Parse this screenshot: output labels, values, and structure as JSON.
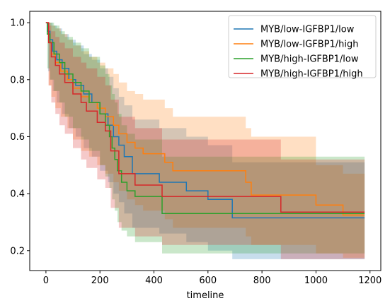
{
  "chart_data": {
    "type": "line",
    "step": "post",
    "title": "",
    "xlabel": "timeline",
    "ylabel": "",
    "xlim": [
      -60,
      1240
    ],
    "ylim": [
      0.13,
      1.04
    ],
    "xticks": [
      0,
      200,
      400,
      600,
      800,
      1000,
      1200
    ],
    "xtick_labels": [
      "0",
      "200",
      "400",
      "600",
      "800",
      "1000",
      "1200"
    ],
    "yticks": [
      0.2,
      0.4,
      0.6,
      0.8,
      1.0
    ],
    "ytick_labels": [
      "0.2",
      "0.4",
      "0.6",
      "0.8",
      "1.0"
    ],
    "grid": false,
    "legend_position": "top-right",
    "series": [
      {
        "name": "MYB/low-IGFBP1/low",
        "color": "#1f77b4",
        "x": [
          0,
          8,
          15,
          25,
          40,
          60,
          85,
          110,
          140,
          170,
          200,
          230,
          250,
          270,
          290,
          320,
          420,
          520,
          600,
          690,
          1180
        ],
        "y": [
          1.0,
          0.97,
          0.94,
          0.9,
          0.87,
          0.84,
          0.8,
          0.78,
          0.75,
          0.72,
          0.68,
          0.64,
          0.6,
          0.57,
          0.53,
          0.47,
          0.44,
          0.41,
          0.38,
          0.315,
          0.315
        ],
        "lower": [
          1.0,
          0.83,
          0.8,
          0.76,
          0.72,
          0.68,
          0.63,
          0.6,
          0.56,
          0.53,
          0.48,
          0.44,
          0.4,
          0.37,
          0.33,
          0.28,
          0.26,
          0.23,
          0.2,
          0.17,
          0.17
        ],
        "upper": [
          1.0,
          1.0,
          1.0,
          0.99,
          0.98,
          0.96,
          0.94,
          0.92,
          0.89,
          0.87,
          0.84,
          0.81,
          0.77,
          0.74,
          0.71,
          0.66,
          0.63,
          0.6,
          0.57,
          0.51,
          0.51
        ]
      },
      {
        "name": "MYB/low-IGFBP1/high",
        "color": "#ff7f0e",
        "x": [
          0,
          10,
          20,
          35,
          55,
          80,
          100,
          130,
          160,
          190,
          220,
          250,
          270,
          300,
          330,
          360,
          440,
          470,
          740,
          760,
          1000,
          1100,
          1180
        ],
        "y": [
          1.0,
          0.93,
          0.89,
          0.86,
          0.83,
          0.8,
          0.77,
          0.74,
          0.72,
          0.7,
          0.67,
          0.64,
          0.61,
          0.58,
          0.56,
          0.54,
          0.51,
          0.48,
          0.44,
          0.395,
          0.36,
          0.325,
          0.325
        ],
        "lower": [
          1.0,
          0.78,
          0.74,
          0.7,
          0.67,
          0.63,
          0.59,
          0.55,
          0.53,
          0.5,
          0.47,
          0.44,
          0.41,
          0.38,
          0.36,
          0.34,
          0.31,
          0.28,
          0.25,
          0.22,
          0.19,
          0.175,
          0.175
        ],
        "upper": [
          1.0,
          1.0,
          0.99,
          0.98,
          0.96,
          0.94,
          0.92,
          0.9,
          0.88,
          0.86,
          0.84,
          0.82,
          0.79,
          0.76,
          0.75,
          0.73,
          0.7,
          0.67,
          0.63,
          0.6,
          0.5,
          0.47,
          0.47
        ]
      },
      {
        "name": "MYB/high-IGFBP1/low",
        "color": "#2ca02c",
        "x": [
          0,
          5,
          15,
          30,
          50,
          70,
          100,
          130,
          160,
          200,
          220,
          235,
          245,
          255,
          265,
          280,
          300,
          330,
          430,
          1180
        ],
        "y": [
          1.0,
          0.96,
          0.93,
          0.89,
          0.86,
          0.82,
          0.79,
          0.76,
          0.72,
          0.68,
          0.64,
          0.6,
          0.56,
          0.52,
          0.48,
          0.44,
          0.41,
          0.39,
          0.33,
          0.33
        ],
        "lower": [
          1.0,
          0.84,
          0.8,
          0.76,
          0.72,
          0.67,
          0.63,
          0.59,
          0.55,
          0.5,
          0.46,
          0.42,
          0.38,
          0.34,
          0.3,
          0.27,
          0.25,
          0.23,
          0.19,
          0.19
        ],
        "upper": [
          1.0,
          1.0,
          1.0,
          0.99,
          0.97,
          0.95,
          0.93,
          0.91,
          0.88,
          0.85,
          0.82,
          0.78,
          0.75,
          0.72,
          0.68,
          0.64,
          0.61,
          0.59,
          0.53,
          0.53
        ]
      },
      {
        "name": "MYB/high-IGFBP1/high",
        "color": "#d62728",
        "x": [
          0,
          10,
          20,
          35,
          50,
          70,
          100,
          130,
          150,
          190,
          220,
          240,
          270,
          330,
          430,
          870,
          1180
        ],
        "y": [
          1.0,
          0.93,
          0.88,
          0.85,
          0.82,
          0.79,
          0.75,
          0.72,
          0.69,
          0.65,
          0.62,
          0.55,
          0.47,
          0.43,
          0.39,
          0.335,
          0.335
        ],
        "lower": [
          1.0,
          0.78,
          0.72,
          0.68,
          0.64,
          0.61,
          0.56,
          0.52,
          0.49,
          0.45,
          0.42,
          0.35,
          0.28,
          0.25,
          0.22,
          0.17,
          0.17
        ],
        "upper": [
          1.0,
          0.99,
          0.97,
          0.95,
          0.93,
          0.91,
          0.88,
          0.86,
          0.84,
          0.81,
          0.78,
          0.73,
          0.67,
          0.63,
          0.59,
          0.52,
          0.52
        ]
      }
    ]
  }
}
